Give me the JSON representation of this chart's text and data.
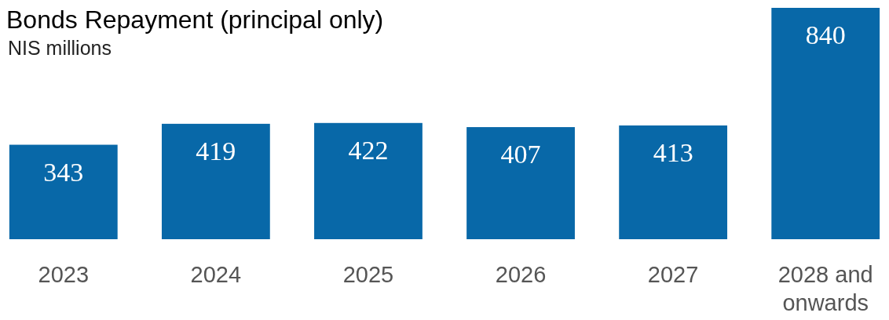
{
  "chart_data": {
    "type": "bar",
    "title": "Bonds Repayment (principal only)",
    "subtitle": "NIS millions",
    "categories": [
      "2023",
      "2024",
      "2025",
      "2026",
      "2027",
      "2028 and onwards"
    ],
    "values": [
      343,
      419,
      422,
      407,
      413,
      840
    ],
    "color": "#0868a8",
    "data_labels": true
  }
}
